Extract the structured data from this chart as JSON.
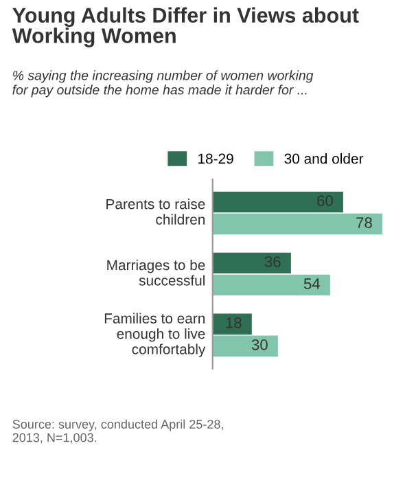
{
  "chart_data": {
    "type": "bar",
    "orientation": "horizontal",
    "title": "Young Adults Differ in Views about\nWorking Women",
    "subtitle": "% saying the increasing number of women working\nfor pay outside the home has made it harder for ...",
    "categories": [
      "Parents to raise\nchildren",
      "Marriages to be\nsuccessful",
      "Families to earn\nenough to live\ncomfortably"
    ],
    "series": [
      {
        "name": "18-29",
        "color": "#2f6f55",
        "values": [
          60,
          36,
          18
        ]
      },
      {
        "name": "30 and older",
        "color": "#82c5ad",
        "values": [
          78,
          54,
          30
        ]
      }
    ],
    "data_labels": true,
    "legend": "top",
    "grid": false,
    "annotations": [
      "Source: survey, conducted April 25-28,\n2013, N=1,003."
    ]
  }
}
